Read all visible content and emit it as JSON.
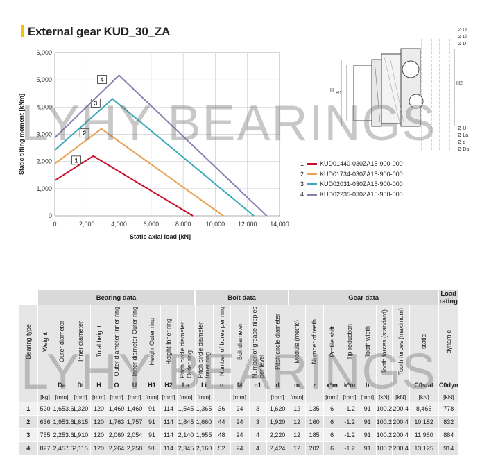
{
  "title": "External gear KUD_30_ZA",
  "watermark": "LYHY BEARINGS",
  "colors": {
    "title_accent": "#f4c400"
  },
  "chart_data": {
    "type": "line",
    "xlabel": "Static axial load [kN]",
    "ylabel": "Static tilting moment [kNm]",
    "xlim": [
      0,
      14000
    ],
    "ylim": [
      0,
      6000
    ],
    "xticks": [
      "0",
      "2,000",
      "4,000",
      "6,000",
      "8,000",
      "10,000",
      "12,000",
      "14,000"
    ],
    "yticks": [
      "0",
      "1,000",
      "2,000",
      "3,000",
      "4,000",
      "5,000",
      "6,000"
    ],
    "grid": true,
    "series": [
      {
        "name": "KUD01440-030ZA15-900-000",
        "label": "1",
        "color": "#c8102e",
        "x": [
          0,
          2400,
          8600
        ],
        "y": [
          1300,
          2200,
          0
        ]
      },
      {
        "name": "KUD01734-030ZA15-900-000",
        "label": "2",
        "color": "#e8a050",
        "x": [
          0,
          2900,
          10500
        ],
        "y": [
          1920,
          3200,
          0
        ]
      },
      {
        "name": "KUD02031-030ZA15-900-000",
        "label": "3",
        "color": "#3aa8b8",
        "x": [
          0,
          3600,
          12400
        ],
        "y": [
          2420,
          4300,
          0
        ]
      },
      {
        "name": "KUD02235-030ZA15-900-000",
        "label": "4",
        "color": "#8a7fb0",
        "x": [
          0,
          4000,
          13200
        ],
        "y": [
          2870,
          5170,
          0
        ]
      }
    ]
  },
  "drawing": {
    "dim_right": [
      "Ø O",
      "Ø Li",
      "Ø DI"
    ],
    "dim_right_bottom": [
      "Ø U",
      "Ø La",
      "Ø d",
      "Ø Da"
    ],
    "h_left": "H",
    "h1_left": "H1",
    "h2_right": "H2"
  },
  "table": {
    "groups": [
      {
        "label": "",
        "span": 1
      },
      {
        "label": "Bearing data",
        "span": 9
      },
      {
        "label": "Bolt data",
        "span": 5
      },
      {
        "label": "Gear data",
        "span": 8
      },
      {
        "label": "Load rating",
        "span": 2
      }
    ],
    "columns": [
      {
        "name": "Bearing type",
        "symbol": "",
        "unit": ""
      },
      {
        "name": "Weight",
        "symbol": "",
        "unit": "[kg]"
      },
      {
        "name": "Outer diameter",
        "symbol": "Da",
        "unit": "[mm]"
      },
      {
        "name": "Inner diameter",
        "symbol": "Di",
        "unit": "[mm]"
      },
      {
        "name": "Total height",
        "symbol": "H",
        "unit": "[mm]"
      },
      {
        "name": "Outer diameter Inner ring",
        "symbol": "O",
        "unit": "[mm]"
      },
      {
        "name": "Inner diameter Outer ring",
        "symbol": "U",
        "unit": "[mm]"
      },
      {
        "name": "Height Outer ring",
        "symbol": "H1",
        "unit": "[mm]"
      },
      {
        "name": "Height Inner ring",
        "symbol": "H2",
        "unit": "[mm]"
      },
      {
        "name": "Pitch circle diameter Outer ring",
        "symbol": "La",
        "unit": "[mm]"
      },
      {
        "name": "Pitch circle diameter Inner ring",
        "symbol": "Li",
        "unit": "[mm]"
      },
      {
        "name": "Number of bores per ring",
        "symbol": "n",
        "unit": ""
      },
      {
        "name": "Bolt diameter",
        "symbol": "M",
        "unit": "[mm]"
      },
      {
        "name": "Number of grease nipples per level",
        "symbol": "n1",
        "unit": ""
      },
      {
        "name": "Pitch circle diameter",
        "symbol": "d",
        "unit": "[mm]"
      },
      {
        "name": "Module (metric)",
        "symbol": "m",
        "unit": "[mm]"
      },
      {
        "name": "Number of teeth",
        "symbol": "z",
        "unit": ""
      },
      {
        "name": "Profile shift",
        "symbol": "x*m",
        "unit": "[mm]"
      },
      {
        "name": "Tip reduction",
        "symbol": "k*m",
        "unit": "[mm]"
      },
      {
        "name": "Tooth width",
        "symbol": "b",
        "unit": "[mm]"
      },
      {
        "name": "Tooth forces (standard)",
        "symbol": "",
        "unit": "[kN]"
      },
      {
        "name": "Tooth forces (maximum)",
        "symbol": "",
        "unit": "[kN]"
      },
      {
        "name": "static",
        "symbol": "C0stat",
        "unit": "[kN]"
      },
      {
        "name": "dynamic",
        "symbol": "C0dyn",
        "unit": "[kN]"
      }
    ],
    "rows": [
      [
        "1",
        "520",
        "1,653.6",
        "1,320",
        "120",
        "1,469",
        "1,460",
        "91",
        "114",
        "1,545",
        "1,365",
        "36",
        "24",
        "3",
        "1,620",
        "12",
        "135",
        "6",
        "-1.2",
        "91",
        "100.2",
        "200.4",
        "8,465",
        "778"
      ],
      [
        "2",
        "636",
        "1,953.6",
        "1,615",
        "120",
        "1,763",
        "1,757",
        "91",
        "114",
        "1,845",
        "1,660",
        "44",
        "24",
        "3",
        "1,920",
        "12",
        "160",
        "6",
        "-1.2",
        "91",
        "100.2",
        "200.4",
        "10,182",
        "832"
      ],
      [
        "3",
        "755",
        "2,253.6",
        "1,910",
        "120",
        "2,060",
        "2,054",
        "91",
        "114",
        "2,140",
        "1,955",
        "48",
        "24",
        "4",
        "2,220",
        "12",
        "185",
        "6",
        "-1.2",
        "91",
        "100.2",
        "200.4",
        "11,960",
        "884"
      ],
      [
        "4",
        "827",
        "2,457.6",
        "2,115",
        "120",
        "2,264",
        "2,258",
        "91",
        "114",
        "2,345",
        "2,160",
        "52",
        "24",
        "4",
        "2,424",
        "12",
        "202",
        "6",
        "-1.2",
        "91",
        "100.2",
        "200.4",
        "13,125",
        "914"
      ]
    ]
  }
}
